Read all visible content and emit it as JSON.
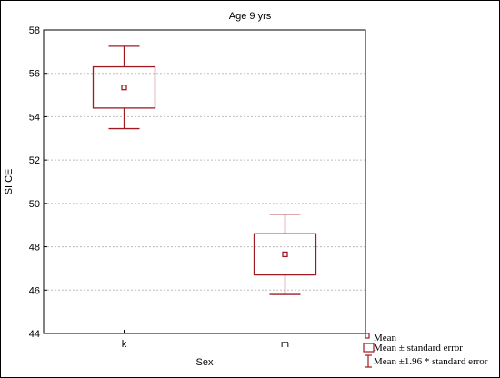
{
  "chart_data": {
    "type": "boxplot",
    "title": "Age 9 yrs",
    "xlabel": "Sex",
    "ylabel": "SI CE",
    "categories": [
      "k",
      "m"
    ],
    "ylim": [
      44,
      58
    ],
    "yticks": [
      44,
      46,
      48,
      50,
      52,
      54,
      56,
      58
    ],
    "grid": true,
    "series": [
      {
        "category": "k",
        "mean": 55.35,
        "se_low": 54.4,
        "se_high": 56.3,
        "ci_low": 53.45,
        "ci_high": 57.25
      },
      {
        "category": "m",
        "mean": 47.65,
        "se_low": 46.7,
        "se_high": 48.6,
        "ci_low": 45.8,
        "ci_high": 49.5
      }
    ],
    "legend": {
      "position": "bottom-right",
      "items": [
        "Mean",
        "Mean ± standard error",
        "Mean ±1.96 * standard error"
      ]
    },
    "color": "#a01a22"
  }
}
